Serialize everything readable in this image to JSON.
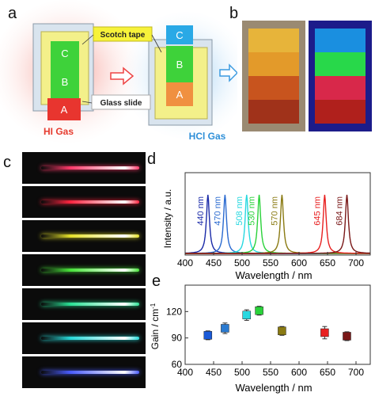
{
  "figure": {
    "panel_labels": {
      "a": "a",
      "b": "b",
      "c": "c",
      "d": "d",
      "e": "e"
    }
  },
  "schematic": {
    "layer_labels": [
      "A",
      "B",
      "C"
    ],
    "scotch_tape_label": "Scotch tape",
    "glass_slide_label": "Glass slide",
    "hi_gas_label": "HI Gas",
    "hcl_gas_label": "HCl Gas",
    "colors": {
      "A": "#e8352f",
      "B": "#3ed23a",
      "C": "#29a9e6",
      "tape": "#f3f08a",
      "hi": "#e63b2e",
      "hcl": "#2e8fd8"
    }
  },
  "photo": {
    "daylight_bands": [
      "#e7b43a",
      "#e39a2a",
      "#c8541e",
      "#a0321a"
    ],
    "uv_bands": [
      "#1a8fe0",
      "#28d84a",
      "#d8284a",
      "#b0201c"
    ]
  },
  "lasing_strips": [
    {
      "color": "#ff3a6a"
    },
    {
      "color": "#ff2540"
    },
    {
      "color": "#e4e02a"
    },
    {
      "color": "#48e23a"
    },
    {
      "color": "#2ae094"
    },
    {
      "color": "#28d8d8"
    },
    {
      "color": "#4a5cff"
    }
  ],
  "chart_data": [
    {
      "type": "line",
      "xlabel": "Wavelength / nm",
      "ylabel": "Intensity / a.u.",
      "xlim": [
        400,
        725
      ],
      "xticks": [
        400,
        450,
        500,
        550,
        600,
        650,
        700
      ],
      "series": [
        {
          "peak": 440,
          "label": "440 nm",
          "color": "#1a2aa8"
        },
        {
          "peak": 470,
          "label": "470 nm",
          "color": "#2a6ad0"
        },
        {
          "peak": 508,
          "label": "508 nm",
          "color": "#28d8e0"
        },
        {
          "peak": 530,
          "label": "530 nm",
          "color": "#2ad23a"
        },
        {
          "peak": 570,
          "label": "570 nm",
          "color": "#8a7a12"
        },
        {
          "peak": 645,
          "label": "645 nm",
          "color": "#e82020"
        },
        {
          "peak": 684,
          "label": "684 nm",
          "color": "#7a1818"
        }
      ]
    },
    {
      "type": "scatter",
      "xlabel": "Wavelength / nm",
      "ylabel": "Gain / cm",
      "ylabel_sup": "-1",
      "xlim": [
        400,
        725
      ],
      "ylim": [
        60,
        150
      ],
      "xticks": [
        400,
        450,
        500,
        550,
        600,
        650,
        700
      ],
      "yticks": [
        60,
        90,
        120
      ],
      "points": [
        {
          "x": 440,
          "y": 93,
          "err": 5,
          "color": "#1a5ad8"
        },
        {
          "x": 470,
          "y": 101,
          "err": 6,
          "color": "#2a7ad0"
        },
        {
          "x": 508,
          "y": 116,
          "err": 6,
          "color": "#28d8e0"
        },
        {
          "x": 530,
          "y": 121,
          "err": 5,
          "color": "#2ad23a"
        },
        {
          "x": 570,
          "y": 98,
          "err": 5,
          "color": "#8a7a12"
        },
        {
          "x": 645,
          "y": 96,
          "err": 7,
          "color": "#e82020"
        },
        {
          "x": 684,
          "y": 92,
          "err": 5,
          "color": "#7a1818"
        }
      ]
    }
  ]
}
